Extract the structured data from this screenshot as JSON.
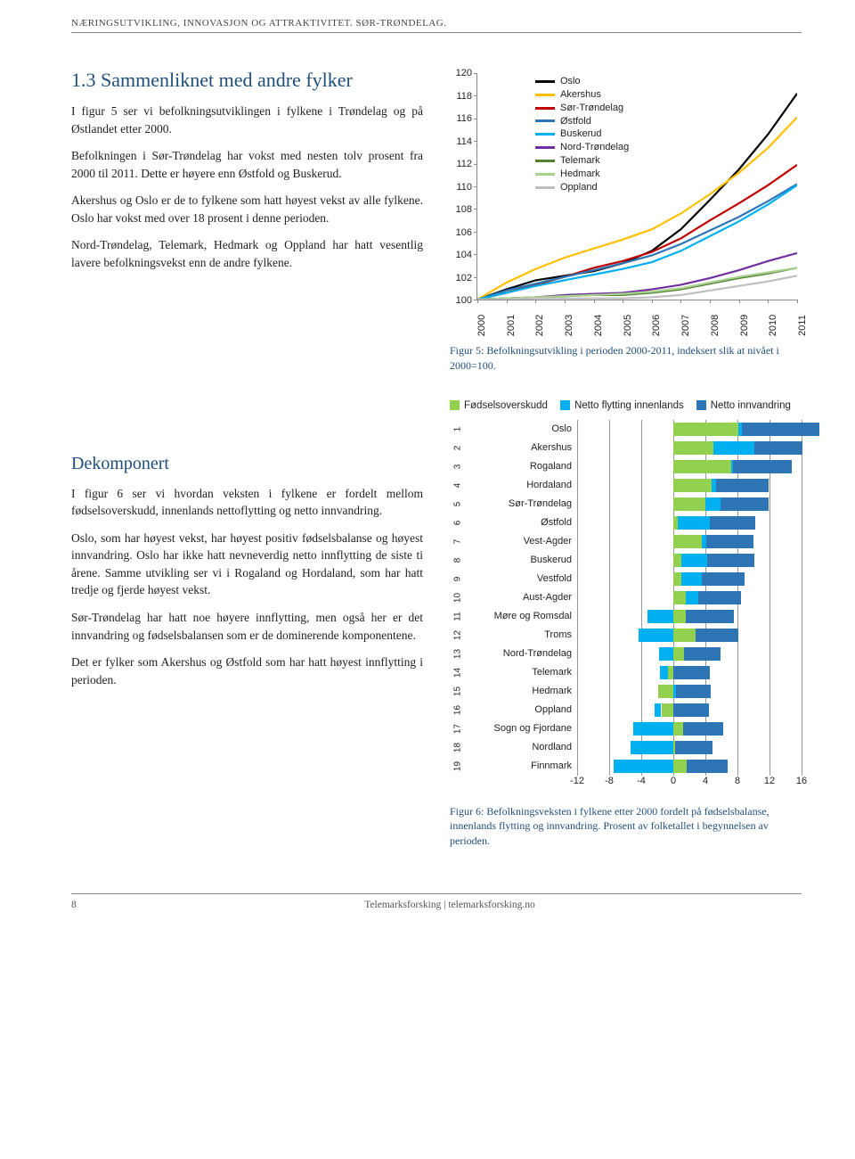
{
  "running_header": "NÆRINGSUTVIKLING, INNOVASJON OG ATTRAKTIVITET. SØR-TRØNDELAG.",
  "section1": {
    "title": "1.3 Sammenliknet med andre fylker",
    "p1": "I figur 5 ser vi befolkningsutviklingen i fylkene i Trøndelag og på Østlandet etter 2000.",
    "p2": "Befolkningen i Sør-Trøndelag har vokst med nesten tolv prosent fra 2000 til 2011. Dette er høyere enn Østfold og Buskerud.",
    "p3": "Akershus og Oslo er de to fylkene som hatt høyest vekst av alle fylkene. Oslo har vokst med over 18 prosent i denne perioden.",
    "p4": "Nord-Trøndelag, Telemark, Hedmark og Oppland har hatt vesentlig lavere befolkningsvekst enn de andre fylkene."
  },
  "section2": {
    "title": "Dekomponert",
    "p1": "I figur 6 ser vi hvordan veksten i fylkene er fordelt mellom fødselsoverskudd, innenlands nettoflytting og netto innvandring.",
    "p2": "Oslo, som har høyest vekst, har høyest positiv fødselsbalanse og høyest innvandring. Oslo har ikke hatt nevneverdig netto innflytting de siste ti årene. Samme utvikling ser vi i Rogaland og Hordaland, som har hatt tredje og fjerde høyest vekst.",
    "p3": "Sør-Trøndelag har hatt noe høyere innflytting, men også her er det innvandring og fødselsbalansen som er de dominerende komponentene.",
    "p4": "Det er fylker som Akershus og Østfold som har hatt høyest innflytting i perioden."
  },
  "fig5_caption": "Figur 5: Befolkningsutvikling i perioden 2000-2011, indeksert slik at nivået i 2000=100.",
  "fig6_caption": "Figur 6: Befolkningsveksten i fylkene etter 2000 fordelt på fødselsbalanse, innenlands flytting og innvandring. Prosent av folketallet i begynnelsen av perioden.",
  "line_chart": {
    "ylim": [
      100,
      120
    ],
    "ytick_step": 2,
    "years": [
      "2000",
      "2001",
      "2002",
      "2003",
      "2004",
      "2005",
      "2006",
      "2007",
      "2008",
      "2009",
      "2010",
      "2011"
    ],
    "series": [
      {
        "name": "Oslo",
        "color": "#000000",
        "values": [
          100,
          100.9,
          101.7,
          102.1,
          102.5,
          103.2,
          104.3,
          106.2,
          108.8,
          111.5,
          114.6,
          118.2
        ]
      },
      {
        "name": "Akershus",
        "color": "#ffc000",
        "values": [
          100,
          101.5,
          102.7,
          103.7,
          104.5,
          105.3,
          106.2,
          107.6,
          109.3,
          111.2,
          113.4,
          116.1
        ]
      },
      {
        "name": "Sør-Trøndelag",
        "color": "#c00000",
        "values": [
          100,
          100.6,
          101.3,
          102.0,
          102.8,
          103.4,
          104.2,
          105.4,
          107.0,
          108.5,
          110.1,
          111.9
        ]
      },
      {
        "name": "Østfold",
        "color": "#2e75b6",
        "values": [
          100,
          100.8,
          101.4,
          102.0,
          102.6,
          103.2,
          103.9,
          104.9,
          106.1,
          107.3,
          108.7,
          110.2
        ]
      },
      {
        "name": "Buskerud",
        "color": "#00b0f0",
        "values": [
          100,
          100.6,
          101.2,
          101.7,
          102.2,
          102.7,
          103.3,
          104.3,
          105.6,
          106.9,
          108.4,
          110.1
        ]
      },
      {
        "name": "Nord-Trøndelag",
        "color": "#7030a0",
        "values": [
          100,
          100.1,
          100.2,
          100.4,
          100.5,
          100.6,
          100.9,
          101.3,
          101.9,
          102.6,
          103.4,
          104.1
        ]
      },
      {
        "name": "Telemark",
        "color": "#548235",
        "values": [
          100,
          100.1,
          100.2,
          100.3,
          100.4,
          100.4,
          100.6,
          100.9,
          101.4,
          101.9,
          102.3,
          102.8
        ]
      },
      {
        "name": "Hedmark",
        "color": "#a9d18e",
        "values": [
          100,
          100.1,
          100.2,
          100.3,
          100.4,
          100.5,
          100.7,
          101.0,
          101.5,
          102.0,
          102.4,
          102.8
        ]
      },
      {
        "name": "Oppland",
        "color": "#bfbfbf",
        "values": [
          100,
          100.0,
          100.1,
          100.1,
          100.1,
          100.1,
          100.2,
          100.4,
          100.8,
          101.2,
          101.6,
          102.1
        ]
      }
    ]
  },
  "bar_chart": {
    "legend": [
      {
        "label": "Fødselsoverskudd",
        "color": "#92d050"
      },
      {
        "label": "Netto flytting innenlands",
        "color": "#00b0f0"
      },
      {
        "label": "Netto innvandring",
        "color": "#2e75b6"
      }
    ],
    "xmin": -12,
    "xmax": 16,
    "xtick_step": 4,
    "rows": [
      {
        "rank": "1",
        "label": "Oslo",
        "fod": 8.1,
        "fly": 0.5,
        "inn": 9.6
      },
      {
        "rank": "2",
        "label": "Akershus",
        "fod": 5.0,
        "fly": 5.1,
        "inn": 6.0
      },
      {
        "rank": "3",
        "label": "Rogaland",
        "fod": 7.2,
        "fly": 0.2,
        "inn": 7.4
      },
      {
        "rank": "4",
        "label": "Hordaland",
        "fod": 4.8,
        "fly": 0.5,
        "inn": 6.6
      },
      {
        "rank": "5",
        "label": "Sør-Trøndelag",
        "fod": 4.0,
        "fly": 1.9,
        "inn": 6.0
      },
      {
        "rank": "6",
        "label": "Østfold",
        "fod": 0.6,
        "fly": 4.0,
        "inn": 5.6
      },
      {
        "rank": "7",
        "label": "Vest-Agder",
        "fod": 3.5,
        "fly": 0.6,
        "inn": 5.9
      },
      {
        "rank": "8",
        "label": "Buskerud",
        "fod": 1.0,
        "fly": 3.2,
        "inn": 5.9
      },
      {
        "rank": "9",
        "label": "Vestfold",
        "fod": 1.0,
        "fly": 2.5,
        "inn": 5.4
      },
      {
        "rank": "10",
        "label": "Aust-Agder",
        "fod": 1.5,
        "fly": 1.6,
        "inn": 5.4
      },
      {
        "rank": "11",
        "label": "Møre og Romsdal",
        "fod": 1.5,
        "fly": -3.2,
        "inn": 6.1
      },
      {
        "rank": "12",
        "label": "Troms",
        "fod": 2.8,
        "fly": -4.3,
        "inn": 5.3
      },
      {
        "rank": "13",
        "label": "Nord-Trøndelag",
        "fod": 1.3,
        "fly": -1.8,
        "inn": 4.6
      },
      {
        "rank": "14",
        "label": "Telemark",
        "fod": -0.7,
        "fly": -1.0,
        "inn": 4.6
      },
      {
        "rank": "15",
        "label": "Hedmark",
        "fod": -1.9,
        "fly": 0.3,
        "inn": 4.4
      },
      {
        "rank": "16",
        "label": "Oppland",
        "fod": -1.5,
        "fly": -0.8,
        "inn": 4.4
      },
      {
        "rank": "17",
        "label": "Sogn og Fjordane",
        "fod": 1.2,
        "fly": -5.0,
        "inn": 5.0
      },
      {
        "rank": "18",
        "label": "Nordland",
        "fod": 0.2,
        "fly": -5.3,
        "inn": 4.7
      },
      {
        "rank": "19",
        "label": "Finnmark",
        "fod": 1.7,
        "fly": -7.5,
        "inn": 5.1
      }
    ]
  },
  "footer": {
    "page": "8",
    "text": "Telemarksforsking  |  telemarksforsking.no"
  }
}
